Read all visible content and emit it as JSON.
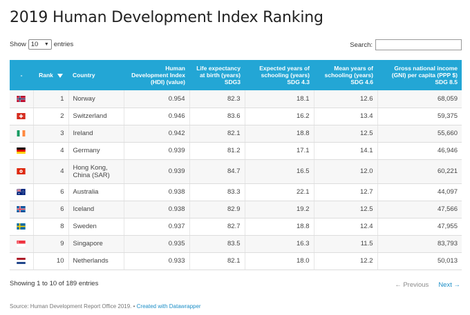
{
  "title": "2019 Human Development Index Ranking",
  "controls": {
    "show_label": "Show",
    "entries_value": "10",
    "entries_label": "entries",
    "search_label": "Search:",
    "search_value": ""
  },
  "table": {
    "headers": {
      "flag": "-",
      "rank": "Rank",
      "country": "Country",
      "hdi": [
        "Human",
        "Development Index",
        "(HDI) (value)"
      ],
      "life": [
        "Life expectancy",
        "at birth (years)",
        "SDG3"
      ],
      "expected": [
        "Expected years of",
        "schooling (years)",
        "SDG 4.3"
      ],
      "mean": [
        "Mean years of",
        "schooling (years) SDG 4.6"
      ],
      "gni": [
        "Gross national income",
        "(GNI) per capita (PPP $)",
        "SDG 8.5"
      ]
    },
    "rows": [
      {
        "flag": "norway-flag-icon",
        "rank": "1",
        "country": [
          "Norway"
        ],
        "hdi": "0.954",
        "life": "82.3",
        "expected": "18.1",
        "mean": "12.6",
        "gni": "68,059"
      },
      {
        "flag": "switzerland-flag-icon",
        "rank": "2",
        "country": [
          "Switzerland"
        ],
        "hdi": "0.946",
        "life": "83.6",
        "expected": "16.2",
        "mean": "13.4",
        "gni": "59,375"
      },
      {
        "flag": "ireland-flag-icon",
        "rank": "3",
        "country": [
          "Ireland"
        ],
        "hdi": "0.942",
        "life": "82.1",
        "expected": "18.8",
        "mean": "12.5",
        "gni": "55,660"
      },
      {
        "flag": "germany-flag-icon",
        "rank": "4",
        "country": [
          "Germany"
        ],
        "hdi": "0.939",
        "life": "81.2",
        "expected": "17.1",
        "mean": "14.1",
        "gni": "46,946"
      },
      {
        "flag": "hong-kong-flag-icon",
        "rank": "4",
        "country": [
          "Hong Kong,",
          "China (SAR)"
        ],
        "hdi": "0.939",
        "life": "84.7",
        "expected": "16.5",
        "mean": "12.0",
        "gni": "60,221"
      },
      {
        "flag": "australia-flag-icon",
        "rank": "6",
        "country": [
          "Australia"
        ],
        "hdi": "0.938",
        "life": "83.3",
        "expected": "22.1",
        "mean": "12.7",
        "gni": "44,097"
      },
      {
        "flag": "iceland-flag-icon",
        "rank": "6",
        "country": [
          "Iceland"
        ],
        "hdi": "0.938",
        "life": "82.9",
        "expected": "19.2",
        "mean": "12.5",
        "gni": "47,566"
      },
      {
        "flag": "sweden-flag-icon",
        "rank": "8",
        "country": [
          "Sweden"
        ],
        "hdi": "0.937",
        "life": "82.7",
        "expected": "18.8",
        "mean": "12.4",
        "gni": "47,955"
      },
      {
        "flag": "singapore-flag-icon",
        "rank": "9",
        "country": [
          "Singapore"
        ],
        "hdi": "0.935",
        "life": "83.5",
        "expected": "16.3",
        "mean": "11.5",
        "gni": "83,793"
      },
      {
        "flag": "netherlands-flag-icon",
        "rank": "10",
        "country": [
          "Netherlands"
        ],
        "hdi": "0.933",
        "life": "82.1",
        "expected": "18.0",
        "mean": "12.2",
        "gni": "50,013"
      }
    ]
  },
  "footer": {
    "info": "Showing 1 to 10 of 189 entries",
    "prev": "← Previous",
    "next": "Next →",
    "source": "Source: Human Development Report Office 2019.",
    "separator": " • ",
    "credit": "Created with Datawrapper"
  },
  "colors": {
    "header_bg": "#23a6d5",
    "link": "#1b8ec7"
  }
}
